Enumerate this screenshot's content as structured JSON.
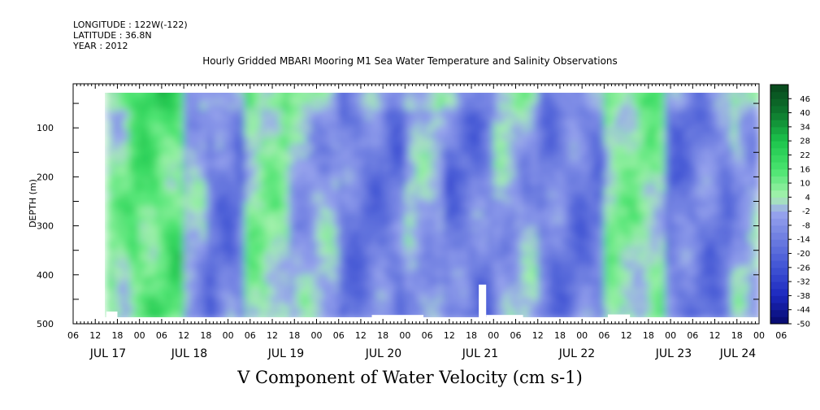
{
  "header": {
    "longitude": "LONGITUDE : 122W(-122)",
    "latitude": "LATITUDE : 36.8N",
    "year": "YEAR : 2012"
  },
  "chart_data": {
    "type": "heatmap",
    "title": "Hourly Gridded MBARI Mooring M1 Sea Water Temperature and Salinity Observations",
    "xlabel": "V Component of Water Velocity (cm s-1)",
    "ylabel": "DEPTH (m)",
    "x_range_hours": [
      0,
      186
    ],
    "y_range_m": [
      10,
      500
    ],
    "y_ticks": [
      100,
      200,
      300,
      400,
      500
    ],
    "x_hour_labels": [
      "06",
      "12",
      "18",
      "00",
      "06",
      "12",
      "18",
      "00",
      "06",
      "12",
      "18",
      "00",
      "06",
      "12",
      "18",
      "00",
      "06",
      "12",
      "18",
      "00",
      "06",
      "12",
      "18",
      "00",
      "06",
      "12",
      "18",
      "00",
      "06",
      "12",
      "18",
      "00",
      "06"
    ],
    "day_labels": [
      "JUL 17",
      "JUL 18",
      "JUL 19",
      "JUL 20",
      "JUL 21",
      "JUL 22",
      "JUL 23",
      "JUL 24"
    ],
    "colorbar_labels": [
      "46",
      "40",
      "34",
      "28",
      "22",
      "16",
      "10",
      "4",
      "-2",
      "-8",
      "-14",
      "-20",
      "-26",
      "-32",
      "-38",
      "-44",
      "-50"
    ],
    "colorbar_range": [
      -50,
      52
    ],
    "palette": {
      "darkest_blue": "#06096a",
      "blue": "#3f53d4",
      "light_blue": "#9aa6ee",
      "pale_green": "#a8f2b0",
      "green": "#2fd85b",
      "dark_green": "#0c5a22"
    },
    "bands": [
      {
        "t0": 9,
        "t1": 14,
        "level": "green"
      },
      {
        "t0": 14,
        "t1": 30,
        "level": "green-strong"
      },
      {
        "t0": 30,
        "t1": 36,
        "level": "mixed"
      },
      {
        "t0": 36,
        "t1": 46,
        "level": "blue"
      },
      {
        "t0": 46,
        "t1": 58,
        "level": "green"
      },
      {
        "t0": 58,
        "t1": 72,
        "level": "mixed"
      },
      {
        "t0": 72,
        "t1": 90,
        "level": "blue"
      },
      {
        "t0": 90,
        "t1": 100,
        "level": "mixed"
      },
      {
        "t0": 100,
        "t1": 114,
        "level": "blue"
      },
      {
        "t0": 114,
        "t1": 126,
        "level": "mixed"
      },
      {
        "t0": 126,
        "t1": 144,
        "level": "blue"
      },
      {
        "t0": 144,
        "t1": 160,
        "level": "green"
      },
      {
        "t0": 160,
        "t1": 178,
        "level": "blue"
      },
      {
        "t0": 178,
        "t1": 186,
        "level": "mixed"
      }
    ]
  }
}
